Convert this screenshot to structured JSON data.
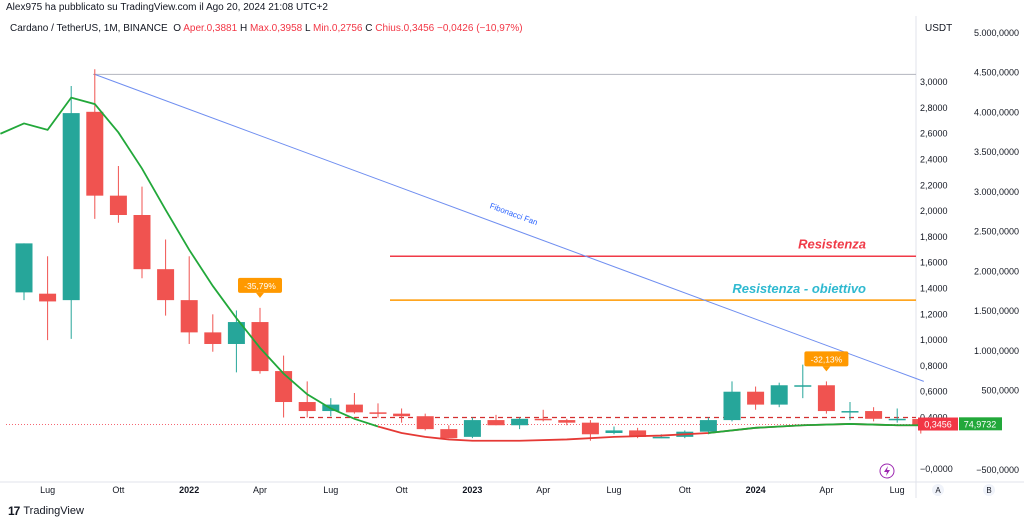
{
  "header": {
    "published": "Alex975 ha pubblicato su TradingView.com il Ago 20, 2024 21:08 UTC+2",
    "symbol": "Cardano / TetherUS, 1M, BINANCE",
    "ohlc": {
      "o_label": "O",
      "o_val": "Aper.0,3881",
      "h_label": "H",
      "h_val": "Max.0,3958",
      "l_label": "L",
      "l_val": "Min.0,2756",
      "c_label": "C",
      "c_val": "Chius.0,3456",
      "change": "−0,0426 (−10,97%)"
    },
    "currency": "USDT"
  },
  "branding": {
    "logo": "17",
    "name": "TradingView"
  },
  "colors": {
    "up": "#26a69a",
    "down": "#f05350",
    "ma": "#22a83a",
    "ma_low": "#e53935",
    "fan": "#6f8ef0",
    "resistance": "#f03a47",
    "target": "#ff9900",
    "target_text": "#2fb9d0"
  },
  "chart_data": {
    "type": "candlestick",
    "title": "Cardano / TetherUS, 1M, BINANCE",
    "left_axis": {
      "ticks": [
        "3,0000",
        "2,8000",
        "2,6000",
        "2,4000",
        "2,2000",
        "2,0000",
        "1,8000",
        "1,6000",
        "1,4000",
        "1,2000",
        "1,0000",
        "0,8000",
        "0,6000",
        "0,4000",
        "0,3456",
        "−0,0000"
      ],
      "min": -0.1,
      "max": 3.35
    },
    "right_axis": {
      "ticks": [
        "5.000,0000",
        "4.500,0000",
        "4.000,0000",
        "3.500,0000",
        "3.000,0000",
        "2.500,0000",
        "2.000,0000",
        "1.500,0000",
        "1.000,0000",
        "500,0000",
        "74,9732",
        "−500,0000"
      ],
      "label": "USDT"
    },
    "x_labels": [
      "Lug",
      "Ott",
      "2022",
      "Apr",
      "Lug",
      "Ott",
      "2023",
      "Apr",
      "Lug",
      "Ott",
      "2024",
      "Apr",
      "Lug"
    ],
    "candles": [
      {
        "t": "2021-06",
        "o": 1.37,
        "h": 1.75,
        "l": 1.31,
        "c": 1.75
      },
      {
        "t": "2021-07",
        "o": 1.36,
        "h": 1.65,
        "l": 1.0,
        "c": 1.3
      },
      {
        "t": "2021-08",
        "o": 1.31,
        "h": 2.97,
        "l": 1.01,
        "c": 2.76
      },
      {
        "t": "2021-09",
        "o": 2.77,
        "h": 3.1,
        "l": 1.94,
        "c": 2.12
      },
      {
        "t": "2021-10",
        "o": 2.12,
        "h": 2.35,
        "l": 1.91,
        "c": 1.97
      },
      {
        "t": "2021-11",
        "o": 1.97,
        "h": 2.19,
        "l": 1.48,
        "c": 1.55
      },
      {
        "t": "2021-12",
        "o": 1.55,
        "h": 1.78,
        "l": 1.19,
        "c": 1.31
      },
      {
        "t": "2022-01",
        "o": 1.31,
        "h": 1.65,
        "l": 0.97,
        "c": 1.06
      },
      {
        "t": "2022-02",
        "o": 1.06,
        "h": 1.2,
        "l": 0.91,
        "c": 0.97
      },
      {
        "t": "2022-03",
        "o": 0.97,
        "h": 1.23,
        "l": 0.75,
        "c": 1.14
      },
      {
        "t": "2022-04",
        "o": 1.14,
        "h": 1.25,
        "l": 0.74,
        "c": 0.76
      },
      {
        "t": "2022-05",
        "o": 0.76,
        "h": 0.88,
        "l": 0.4,
        "c": 0.52
      },
      {
        "t": "2022-06",
        "o": 0.52,
        "h": 0.68,
        "l": 0.4,
        "c": 0.45
      },
      {
        "t": "2022-07",
        "o": 0.45,
        "h": 0.55,
        "l": 0.41,
        "c": 0.5
      },
      {
        "t": "2022-08",
        "o": 0.5,
        "h": 0.59,
        "l": 0.43,
        "c": 0.44
      },
      {
        "t": "2022-09",
        "o": 0.44,
        "h": 0.51,
        "l": 0.4,
        "c": 0.43
      },
      {
        "t": "2022-10",
        "o": 0.43,
        "h": 0.47,
        "l": 0.36,
        "c": 0.41
      },
      {
        "t": "2022-11",
        "o": 0.41,
        "h": 0.43,
        "l": 0.3,
        "c": 0.31
      },
      {
        "t": "2022-12",
        "o": 0.31,
        "h": 0.34,
        "l": 0.24,
        "c": 0.24
      },
      {
        "t": "2023-01",
        "o": 0.25,
        "h": 0.4,
        "l": 0.24,
        "c": 0.38
      },
      {
        "t": "2023-02",
        "o": 0.38,
        "h": 0.42,
        "l": 0.34,
        "c": 0.34
      },
      {
        "t": "2023-03",
        "o": 0.34,
        "h": 0.4,
        "l": 0.31,
        "c": 0.39
      },
      {
        "t": "2023-04",
        "o": 0.39,
        "h": 0.46,
        "l": 0.37,
        "c": 0.38
      },
      {
        "t": "2023-05",
        "o": 0.38,
        "h": 0.39,
        "l": 0.34,
        "c": 0.36
      },
      {
        "t": "2023-06",
        "o": 0.36,
        "h": 0.38,
        "l": 0.22,
        "c": 0.27
      },
      {
        "t": "2023-07",
        "o": 0.28,
        "h": 0.33,
        "l": 0.27,
        "c": 0.3
      },
      {
        "t": "2023-08",
        "o": 0.3,
        "h": 0.32,
        "l": 0.24,
        "c": 0.25
      },
      {
        "t": "2023-09",
        "o": 0.25,
        "h": 0.27,
        "l": 0.24,
        "c": 0.25
      },
      {
        "t": "2023-10",
        "o": 0.25,
        "h": 0.3,
        "l": 0.24,
        "c": 0.29
      },
      {
        "t": "2023-11",
        "o": 0.29,
        "h": 0.4,
        "l": 0.27,
        "c": 0.38
      },
      {
        "t": "2023-12",
        "o": 0.38,
        "h": 0.68,
        "l": 0.37,
        "c": 0.6
      },
      {
        "t": "2024-01",
        "o": 0.6,
        "h": 0.64,
        "l": 0.46,
        "c": 0.5
      },
      {
        "t": "2024-02",
        "o": 0.5,
        "h": 0.67,
        "l": 0.48,
        "c": 0.65
      },
      {
        "t": "2024-03",
        "o": 0.65,
        "h": 0.81,
        "l": 0.55,
        "c": 0.65
      },
      {
        "t": "2024-04",
        "o": 0.65,
        "h": 0.68,
        "l": 0.43,
        "c": 0.45
      },
      {
        "t": "2024-05",
        "o": 0.45,
        "h": 0.52,
        "l": 0.38,
        "c": 0.45
      },
      {
        "t": "2024-06",
        "o": 0.45,
        "h": 0.48,
        "l": 0.37,
        "c": 0.39
      },
      {
        "t": "2024-07",
        "o": 0.39,
        "h": 0.47,
        "l": 0.36,
        "c": 0.39
      },
      {
        "t": "2024-08",
        "o": 0.3881,
        "h": 0.3958,
        "l": 0.2756,
        "c": 0.3456
      }
    ],
    "ma_series": [
      {
        "t": "2021-05",
        "v": 2.6
      },
      {
        "t": "2021-06",
        "v": 2.68
      },
      {
        "t": "2021-07",
        "v": 2.63
      },
      {
        "t": "2021-08",
        "v": 2.88
      },
      {
        "t": "2021-09",
        "v": 2.83
      },
      {
        "t": "2021-10",
        "v": 2.61
      },
      {
        "t": "2021-11",
        "v": 2.33
      },
      {
        "t": "2021-12",
        "v": 2.01
      },
      {
        "t": "2022-01",
        "v": 1.7
      },
      {
        "t": "2022-02",
        "v": 1.42
      },
      {
        "t": "2022-03",
        "v": 1.17
      },
      {
        "t": "2022-04",
        "v": 0.94
      },
      {
        "t": "2022-05",
        "v": 0.74
      },
      {
        "t": "2022-06",
        "v": 0.58
      },
      {
        "t": "2022-07",
        "v": 0.47
      },
      {
        "t": "2022-08",
        "v": 0.39
      },
      {
        "t": "2022-09",
        "v": 0.33
      },
      {
        "t": "2022-10",
        "v": 0.28
      },
      {
        "t": "2022-11",
        "v": 0.25
      },
      {
        "t": "2022-12",
        "v": 0.23
      },
      {
        "t": "2023-01",
        "v": 0.22
      },
      {
        "t": "2023-03",
        "v": 0.22
      },
      {
        "t": "2023-05",
        "v": 0.23
      },
      {
        "t": "2023-07",
        "v": 0.25
      },
      {
        "t": "2023-09",
        "v": 0.26
      },
      {
        "t": "2023-11",
        "v": 0.28
      },
      {
        "t": "2024-01",
        "v": 0.32
      },
      {
        "t": "2024-03",
        "v": 0.34
      },
      {
        "t": "2024-05",
        "v": 0.35
      },
      {
        "t": "2024-07",
        "v": 0.34
      },
      {
        "t": "2024-08",
        "v": 0.34
      }
    ],
    "ma_color_switch": "2022-09",
    "annotations": {
      "resistance": {
        "label": "Resistenza",
        "value": 1.65
      },
      "target": {
        "label": "Resistenza - obiettivo",
        "value": 1.31
      },
      "fib_fan": {
        "label": "Fibonacci Fan",
        "from_t": "2021-09",
        "from_v": 3.06,
        "to_t": "2024-08",
        "to_v": 0.68
      },
      "top_line": {
        "value": 3.06
      },
      "dashed_level": {
        "value": 0.4
      },
      "drop1": {
        "label": "-35,79%",
        "t": "2022-04"
      },
      "drop2": {
        "label": "-32,13%",
        "t": "2024-04"
      }
    },
    "price_badges": {
      "price": "0,3456",
      "indicator": "74,9732"
    },
    "legend": null
  },
  "bottom_buttons": {
    "a": "A",
    "b": "B"
  }
}
